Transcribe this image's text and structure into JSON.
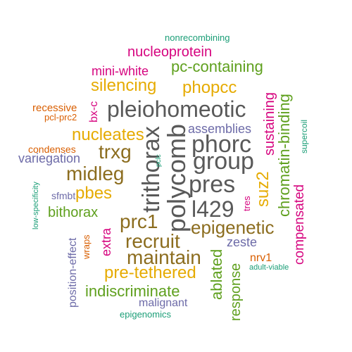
{
  "colors": {
    "gray": "#595959",
    "brown": "#8C6D1F",
    "magenta": "#D6047F",
    "orange": "#E6AB02",
    "green": "#5FA01E",
    "teal": "#1B9E77",
    "rust": "#D95F02",
    "purple": "#6D6BA8"
  },
  "words": [
    {
      "text": "nonrecombining",
      "color": "teal"
    },
    {
      "text": "nucleoprotein",
      "color": "magenta"
    },
    {
      "text": "mini-white",
      "color": "magenta"
    },
    {
      "text": "pc-containing",
      "color": "green"
    },
    {
      "text": "silencing",
      "color": "orange"
    },
    {
      "text": "phopcc",
      "color": "orange"
    },
    {
      "text": "recessive",
      "color": "rust"
    },
    {
      "text": "pcl-prc2",
      "color": "rust"
    },
    {
      "text": "bx-c",
      "color": "magenta"
    },
    {
      "text": "pleiohomeotic",
      "color": "gray"
    },
    {
      "text": "sustaining",
      "color": "magenta"
    },
    {
      "text": "chromatin-binding",
      "color": "green"
    },
    {
      "text": "supercoil",
      "color": "teal"
    },
    {
      "text": "nucleates",
      "color": "orange"
    },
    {
      "text": "assemblies",
      "color": "purple"
    },
    {
      "text": "condenses",
      "color": "rust"
    },
    {
      "text": "variegation",
      "color": "purple"
    },
    {
      "text": "trxg",
      "color": "brown"
    },
    {
      "text": "phorc",
      "color": "gray"
    },
    {
      "text": "group",
      "color": "gray"
    },
    {
      "text": "trithorax",
      "color": "gray"
    },
    {
      "text": "polycomb",
      "color": "gray"
    },
    {
      "text": "pclc",
      "color": "teal"
    },
    {
      "text": "midleg",
      "color": "brown"
    },
    {
      "text": "suz2",
      "color": "orange"
    },
    {
      "text": "compensated",
      "color": "magenta"
    },
    {
      "text": "sfmbt",
      "color": "purple"
    },
    {
      "text": "pbes",
      "color": "orange"
    },
    {
      "text": "pres",
      "color": "gray"
    },
    {
      "text": "tres",
      "color": "magenta"
    },
    {
      "text": "low-specificity",
      "color": "teal"
    },
    {
      "text": "bithorax",
      "color": "green"
    },
    {
      "text": "l429",
      "color": "gray"
    },
    {
      "text": "prc1",
      "color": "brown"
    },
    {
      "text": "epigenetic",
      "color": "brown"
    },
    {
      "text": "position-effect",
      "color": "purple"
    },
    {
      "text": "wraps",
      "color": "rust"
    },
    {
      "text": "extra",
      "color": "magenta"
    },
    {
      "text": "recruit",
      "color": "brown"
    },
    {
      "text": "zeste",
      "color": "purple"
    },
    {
      "text": "maintain",
      "color": "brown"
    },
    {
      "text": "nrv1",
      "color": "rust"
    },
    {
      "text": "adult-viable",
      "color": "teal"
    },
    {
      "text": "pre-tethered",
      "color": "orange"
    },
    {
      "text": "ablated",
      "color": "green"
    },
    {
      "text": "response",
      "color": "green"
    },
    {
      "text": "indiscriminate",
      "color": "green"
    },
    {
      "text": "malignant",
      "color": "purple"
    },
    {
      "text": "epigenomics",
      "color": "teal"
    }
  ]
}
